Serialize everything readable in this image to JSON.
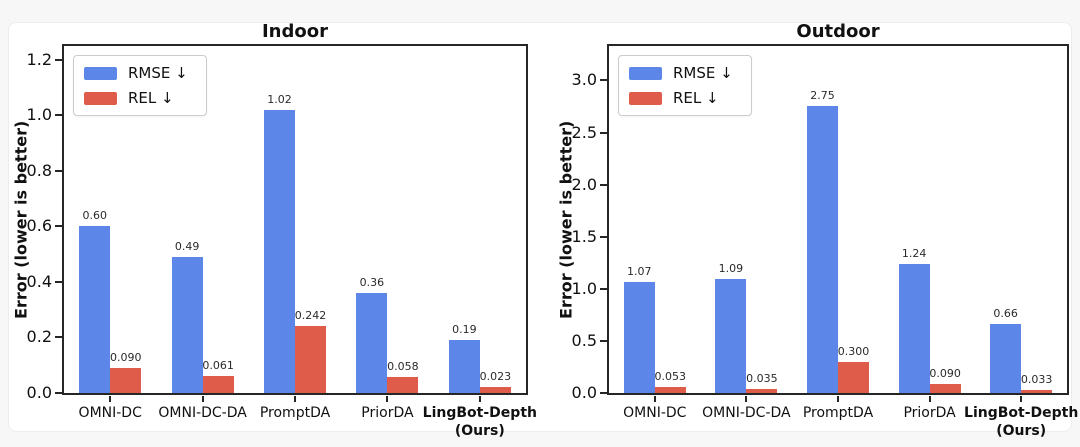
{
  "page": {
    "background_color": "#f7f7f8",
    "card_background_color": "#ffffff"
  },
  "colors": {
    "rmse_blue": "#5c87e8",
    "rel_red": "#e05c4a",
    "axis": "#262626",
    "tick_label": "#111111",
    "value_label": "#2b2b2b"
  },
  "chart_data": [
    {
      "type": "bar",
      "title": "Indoor",
      "xlabel": "",
      "ylabel": "Error (lower is better)",
      "ylim": [
        0,
        1.25
      ],
      "grid": false,
      "legend_position": "upper left",
      "legend": [
        {
          "label": "RMSE ↓",
          "color": "#5c87e8"
        },
        {
          "label": "REL ↓",
          "color": "#e05c4a"
        }
      ],
      "categories": [
        {
          "label": "OMNI-DC",
          "sublabel": "",
          "bold": false
        },
        {
          "label": "OMNI-DC-DA",
          "sublabel": "",
          "bold": false
        },
        {
          "label": "PromptDA",
          "sublabel": "",
          "bold": false
        },
        {
          "label": "PriorDA",
          "sublabel": "",
          "bold": false
        },
        {
          "label": "LingBot-Depth",
          "sublabel": "(Ours)",
          "bold": true
        }
      ],
      "ytick_values": [
        0.0,
        0.2,
        0.4,
        0.6,
        0.8,
        1.0,
        1.2
      ],
      "ytick_labels": [
        "0.0",
        "0.2",
        "0.4",
        "0.6",
        "0.8",
        "1.0",
        "1.2"
      ],
      "series": [
        {
          "name": "RMSE ↓",
          "color": "#5c87e8",
          "values": [
            0.6,
            0.49,
            1.02,
            0.36,
            0.19
          ],
          "value_labels": [
            "0.60",
            "0.49",
            "1.02",
            "0.36",
            "0.19"
          ]
        },
        {
          "name": "REL ↓",
          "color": "#e05c4a",
          "values": [
            0.09,
            0.061,
            0.242,
            0.058,
            0.023
          ],
          "value_labels": [
            "0.090",
            "0.061",
            "0.242",
            "0.058",
            "0.023"
          ]
        }
      ]
    },
    {
      "type": "bar",
      "title": "Outdoor",
      "xlabel": "",
      "ylabel": "Error (lower is better)",
      "ylim": [
        0,
        3.33
      ],
      "grid": false,
      "legend_position": "upper left",
      "legend": [
        {
          "label": "RMSE ↓",
          "color": "#5c87e8"
        },
        {
          "label": "REL ↓",
          "color": "#e05c4a"
        }
      ],
      "categories": [
        {
          "label": "OMNI-DC",
          "sublabel": "",
          "bold": false
        },
        {
          "label": "OMNI-DC-DA",
          "sublabel": "",
          "bold": false
        },
        {
          "label": "PromptDA",
          "sublabel": "",
          "bold": false
        },
        {
          "label": "PriorDA",
          "sublabel": "",
          "bold": false
        },
        {
          "label": "LingBot-Depth",
          "sublabel": "(Ours)",
          "bold": true
        }
      ],
      "ytick_values": [
        0.0,
        0.5,
        1.0,
        1.5,
        2.0,
        2.5,
        3.0
      ],
      "ytick_labels": [
        "0.0",
        "0.5",
        "1.0",
        "1.5",
        "2.0",
        "2.5",
        "3.0"
      ],
      "series": [
        {
          "name": "RMSE ↓",
          "color": "#5c87e8",
          "values": [
            1.07,
            1.09,
            2.75,
            1.24,
            0.66
          ],
          "value_labels": [
            "1.07",
            "1.09",
            "2.75",
            "1.24",
            "0.66"
          ]
        },
        {
          "name": "REL ↓",
          "color": "#e05c4a",
          "values": [
            0.053,
            0.035,
            0.3,
            0.09,
            0.033
          ],
          "value_labels": [
            "0.053",
            "0.035",
            "0.300",
            "0.090",
            "0.033"
          ]
        }
      ]
    }
  ]
}
